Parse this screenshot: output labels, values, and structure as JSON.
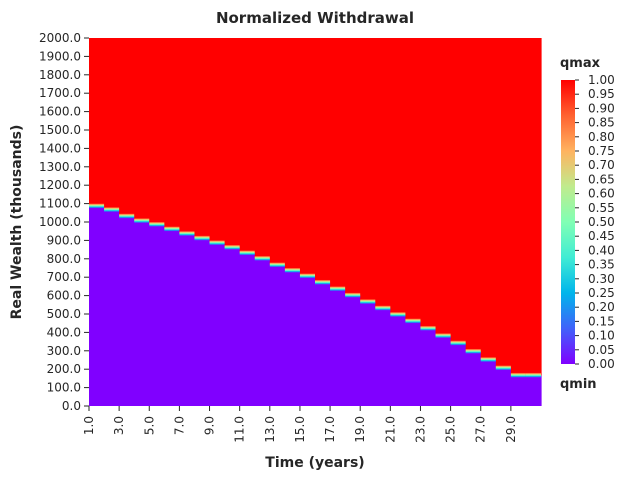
{
  "chart_data": {
    "type": "heatmap",
    "title": "Normalized Withdrawal",
    "xlabel": "Time (years)",
    "ylabel": "Real Wealth (thousands)",
    "x_tick_labels": [
      "1.0",
      "3.0",
      "5.0",
      "7.0",
      "9.0",
      "11.0",
      "13.0",
      "15.0",
      "17.0",
      "19.0",
      "21.0",
      "23.0",
      "25.0",
      "27.0",
      "29.0"
    ],
    "y_tick_labels": [
      "0.0",
      "100.0",
      "200.0",
      "300.0",
      "400.0",
      "500.0",
      "600.0",
      "700.0",
      "800.0",
      "900.0",
      "1000.0",
      "1100.0",
      "1200.0",
      "1300.0",
      "1400.0",
      "1500.0",
      "1600.0",
      "1700.0",
      "1800.0",
      "1900.0",
      "2000.0"
    ],
    "xlim": [
      1,
      30
    ],
    "ylim": [
      0,
      2000
    ],
    "colormap": "rainbow",
    "colorbar": {
      "top_label": "qmax",
      "bottom_label": "qmin",
      "range": [
        0,
        1
      ],
      "tick_labels": [
        "0.00",
        "0.05",
        "0.10",
        "0.15",
        "0.20",
        "0.25",
        "0.30",
        "0.35",
        "0.40",
        "0.45",
        "0.50",
        "0.55",
        "0.60",
        "0.65",
        "0.70",
        "0.75",
        "0.80",
        "0.85",
        "0.90",
        "0.95",
        "1.00"
      ]
    },
    "regions": {
      "below_boundary_value": 0.0,
      "above_boundary_value": 1.0
    },
    "boundary": {
      "years": [
        1,
        2,
        3,
        4,
        5,
        6,
        7,
        8,
        9,
        10,
        11,
        12,
        13,
        14,
        15,
        16,
        17,
        18,
        19,
        20,
        21,
        22,
        23,
        24,
        25,
        26,
        27,
        28,
        29,
        30
      ],
      "wealth": [
        1085,
        1065,
        1030,
        1005,
        985,
        960,
        935,
        910,
        885,
        860,
        830,
        800,
        765,
        735,
        705,
        670,
        635,
        600,
        565,
        530,
        495,
        460,
        420,
        380,
        340,
        295,
        250,
        205,
        165,
        165
      ]
    },
    "colors": {
      "max": "#ff0000",
      "min": "#8000ff"
    }
  }
}
